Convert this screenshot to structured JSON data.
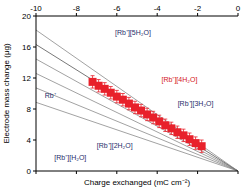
{
  "chart_data": {
    "type": "line",
    "x_label": "Charge exchanged (mC cm⁻²)",
    "y_label": "Electrode mass change (μg)",
    "xlim": [
      -10,
      0
    ],
    "xticks": [
      -10,
      -8,
      -6,
      -4,
      -2,
      0
    ],
    "ylim": [
      0,
      20
    ],
    "yticks": [
      0,
      4,
      8,
      12,
      16,
      20
    ],
    "tick_labels": true,
    "series": [
      {
        "name": "Rb⁺",
        "type": "line",
        "color": "#8a8a8a",
        "x": [
          -10,
          0
        ],
        "values": [
          8.86,
          0
        ]
      },
      {
        "name": "[Rb⁺][H₂O]",
        "type": "line",
        "color": "#8a8a8a",
        "x": [
          -10,
          0
        ],
        "values": [
          10.72,
          0
        ]
      },
      {
        "name": "[Rb⁺][2H₂O]",
        "type": "line",
        "color": "#8a8a8a",
        "x": [
          -10,
          0
        ],
        "values": [
          12.59,
          0
        ]
      },
      {
        "name": "[Rb⁺][3H₂O]",
        "type": "line",
        "color": "#8a8a8a",
        "x": [
          -10,
          0
        ],
        "values": [
          14.45,
          0
        ]
      },
      {
        "name": "[Rb⁺][4H₂O]",
        "type": "line",
        "color": "#555555",
        "x": [
          -10,
          0
        ],
        "values": [
          16.32,
          0
        ]
      },
      {
        "name": "[Rb⁺][5H₂O]",
        "type": "line",
        "color": "#8a8a8a",
        "x": [
          -10,
          0
        ],
        "values": [
          18.19,
          0
        ]
      },
      {
        "type": "scatter",
        "color": "#e8212b",
        "marker": "square",
        "x": [
          -1.8,
          -2.1,
          -2.4,
          -2.7,
          -3.0,
          -3.3,
          -3.6,
          -3.9,
          -4.2,
          -4.5,
          -4.8,
          -5.1,
          -5.4,
          -5.7,
          -6.0,
          -6.3,
          -6.6,
          -6.9,
          -7.2
        ],
        "values": [
          3.2,
          3.6,
          4.1,
          4.6,
          5.0,
          5.5,
          5.9,
          6.4,
          6.9,
          7.3,
          7.8,
          8.2,
          8.7,
          9.2,
          9.6,
          10.1,
          10.6,
          11.0,
          11.5
        ],
        "errors": [
          0.8,
          0.8,
          0.8,
          0.8,
          0.8,
          0.8,
          0.8,
          0.8,
          0.8,
          0.8,
          0.8,
          0.8,
          0.8,
          0.8,
          0.8,
          0.8,
          0.8,
          0.8,
          0.8
        ]
      }
    ]
  }
}
